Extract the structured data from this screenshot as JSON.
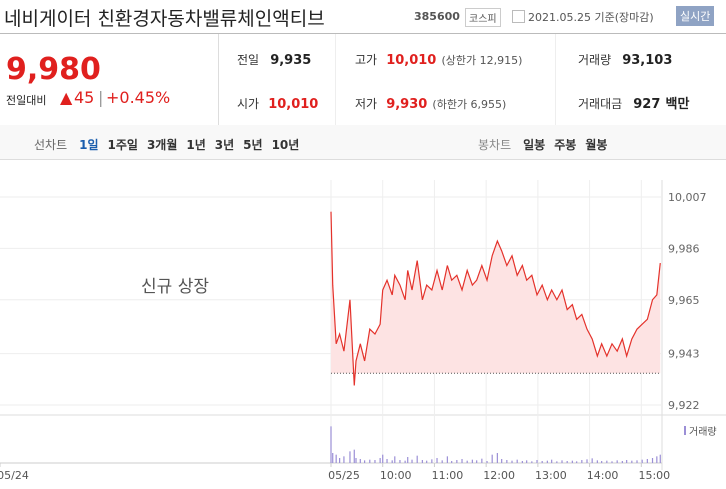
{
  "header": {
    "title": "네비게이터 친환경자동차밸류체인액티브",
    "code": "385600",
    "market": "코스피",
    "date": "2021.05.25 기준(장마감)",
    "realtime": "실시간"
  },
  "price": {
    "current": "9,980",
    "change_label": "전일대비",
    "change": "45",
    "rate": "+0.45%"
  },
  "stats": [
    {
      "label": "전일",
      "value": "9,935"
    },
    {
      "label": "고가",
      "value": "10,010",
      "note": "(상한가 12,915)"
    },
    {
      "label": "거래량",
      "value": "93,103"
    },
    {
      "label": "시가",
      "value": "10,010"
    },
    {
      "label": "저가",
      "value": "9,930",
      "note": "(하한가 6,955)"
    },
    {
      "label": "거래대금",
      "value": "927",
      "unit": "백만"
    }
  ],
  "tabs": {
    "line_label": "선차트",
    "line": [
      "1일",
      "1주일",
      "3개월",
      "1년",
      "3년",
      "5년",
      "10년"
    ],
    "candle_label": "봉차트",
    "candle": [
      "일봉",
      "주봉",
      "월봉"
    ]
  },
  "chart_data": {
    "type": "line",
    "annotation": "신규 상장",
    "baseline": 9935,
    "x": [
      540,
      542,
      546,
      550,
      555,
      562,
      567,
      569,
      574,
      579,
      585,
      591,
      597,
      600,
      605,
      611,
      614,
      620,
      626,
      629,
      634,
      640,
      646,
      651,
      657,
      663,
      669,
      675,
      680,
      686,
      692,
      698,
      704,
      709,
      715,
      721,
      727,
      733,
      738,
      744,
      750,
      756,
      762,
      767,
      773,
      779,
      785,
      791,
      796,
      802,
      808,
      814,
      820,
      825,
      831,
      837,
      843,
      849,
      854,
      860,
      866,
      872,
      878,
      883,
      889,
      895,
      901,
      907,
      913,
      918,
      922
    ],
    "series": [
      {
        "color": "#e4322b",
        "values": [
          10001,
          9971,
          9947,
          9951,
          9944,
          9965,
          9930,
          9940,
          9947,
          9940,
          9953,
          9951,
          9955,
          9969,
          9973,
          9967,
          9975,
          9971,
          9965,
          9977,
          9969,
          9981,
          9965,
          9971,
          9969,
          9977,
          9969,
          9979,
          9973,
          9975,
          9969,
          9977,
          9971,
          9973,
          9979,
          9973,
          9983,
          9989,
          9985,
          9979,
          9983,
          9975,
          9979,
          9973,
          9975,
          9967,
          9971,
          9965,
          9969,
          9965,
          9969,
          9961,
          9963,
          9957,
          9959,
          9953,
          9949,
          9942,
          9947,
          9942,
          9947,
          9944,
          9949,
          9942,
          9949,
          9953,
          9955,
          9957,
          9965,
          9967,
          9980
        ]
      }
    ],
    "volume": {
      "name": "거래량",
      "color": "#9b8fd6",
      "ylim": [
        0,
        12000
      ],
      "values": [
        11000,
        3000,
        2500,
        1500,
        2000,
        3500,
        4000,
        1500,
        1200,
        800,
        1000,
        900,
        1500,
        2500,
        1200,
        800,
        2000,
        900,
        700,
        1800,
        1000,
        2200,
        900,
        700,
        1100,
        1500,
        800,
        2000,
        600,
        900,
        1200,
        700,
        1000,
        800,
        1300,
        600,
        2500,
        3000,
        1200,
        900,
        700,
        1000,
        600,
        800,
        500,
        900,
        600,
        700,
        1000,
        500,
        800,
        600,
        700,
        500,
        900,
        1100,
        1400,
        800,
        600,
        700,
        500,
        800,
        600,
        900,
        700,
        800,
        1000,
        1200,
        1500,
        2000,
        2500
      ]
    },
    "xlim": [
      156,
      924
    ],
    "xticks": [
      {
        "value": 156,
        "label": "05/24"
      },
      {
        "value": 540,
        "label": "05/25"
      },
      {
        "value": 600,
        "label": "10:00"
      },
      {
        "value": 660,
        "label": "11:00"
      },
      {
        "value": 720,
        "label": "12:00"
      },
      {
        "value": 780,
        "label": "13:00"
      },
      {
        "value": 840,
        "label": "14:00"
      },
      {
        "value": 900,
        "label": "15:00"
      }
    ],
    "ylim": [
      9922,
      10007
    ],
    "yticks": [
      {
        "value": 10007,
        "label": "10,007"
      },
      {
        "value": 9986,
        "label": "9,986"
      },
      {
        "value": 9965,
        "label": "9,965"
      },
      {
        "value": 9943,
        "label": "9,943"
      },
      {
        "value": 9922,
        "label": "9,922"
      }
    ],
    "grid": true
  }
}
